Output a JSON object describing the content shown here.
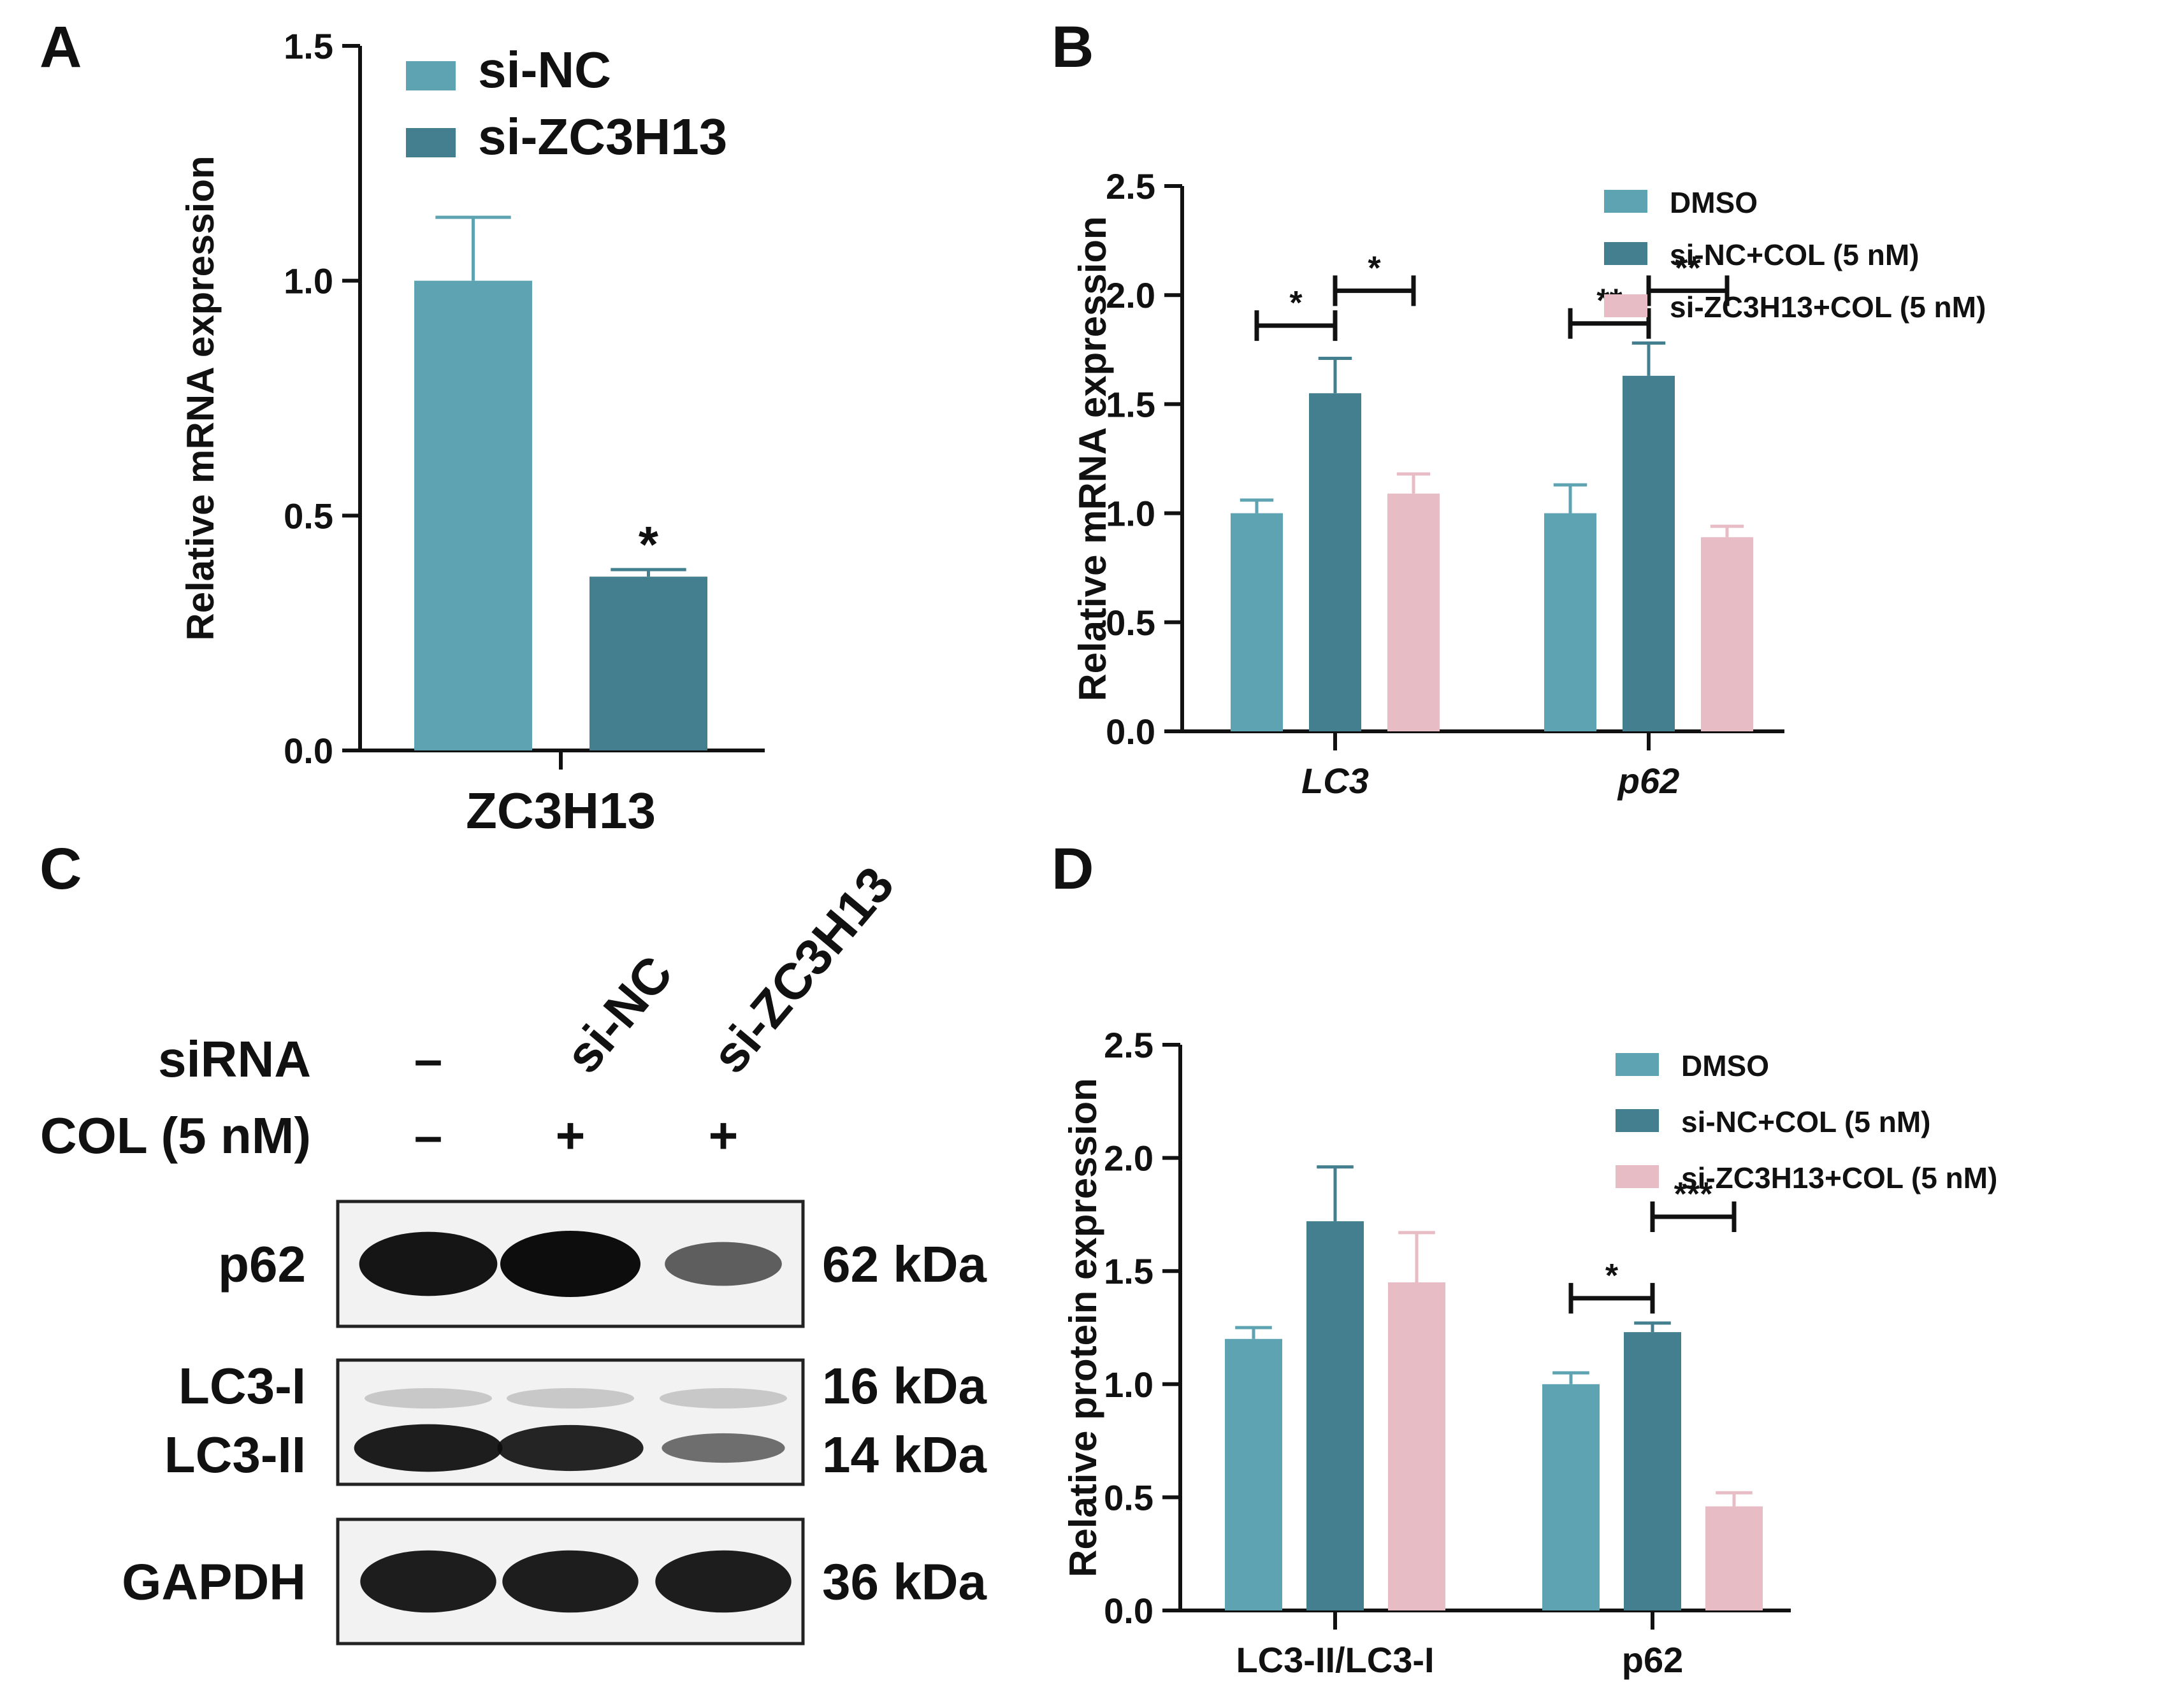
{
  "panels": {
    "A": "A",
    "B": "B",
    "C": "C",
    "D": "D"
  },
  "colors": {
    "dmso": "#5DA3B1",
    "sinc": "#437F8E",
    "sizc": "#E7BCC4",
    "axis": "#111111"
  },
  "chart_data": [
    {
      "id": "A",
      "type": "bar",
      "title": "",
      "ylabel": "Relative mRNA expression",
      "xlabel": "",
      "ylim": [
        0,
        1.5
      ],
      "yticks": [
        0.0,
        0.5,
        1.0,
        1.5
      ],
      "ytick_labels": [
        "0.0",
        "0.5",
        "1.0",
        "1.5"
      ],
      "categories": [
        "ZC3H13"
      ],
      "series": [
        {
          "name": "si-NC",
          "color": "#5DA3B1",
          "values": [
            1.0
          ],
          "errors": [
            0.135
          ]
        },
        {
          "name": "si-ZC3H13",
          "color": "#437F8E",
          "values": [
            0.37
          ],
          "errors": [
            0.015
          ]
        }
      ],
      "annotations": [
        {
          "text": "*",
          "category": 0,
          "series": 1
        }
      ],
      "legend": "top-right"
    },
    {
      "id": "B",
      "type": "bar",
      "ylabel": "Relative mRNA expression",
      "ylim": [
        0,
        2.5
      ],
      "yticks": [
        0.0,
        0.5,
        1.0,
        1.5,
        2.0,
        2.5
      ],
      "ytick_labels": [
        "0.0",
        "0.5",
        "1.0",
        "1.5",
        "2.0",
        "2.5"
      ],
      "categories": [
        "LC3",
        "p62"
      ],
      "italic_categories": true,
      "series": [
        {
          "name": "DMSO",
          "color": "#5DA3B1",
          "values": [
            1.0,
            1.0
          ],
          "errors": [
            0.06,
            0.13
          ]
        },
        {
          "name": "si-NC+COL (5 nM)",
          "color": "#437F8E",
          "values": [
            1.55,
            1.63
          ],
          "errors": [
            0.16,
            0.15
          ]
        },
        {
          "name": "si-ZC3H13+COL (5 nM)",
          "color": "#E7BCC4",
          "values": [
            1.09,
            0.89
          ],
          "errors": [
            0.09,
            0.05
          ]
        }
      ],
      "significance": [
        {
          "category": 0,
          "from": 0,
          "to": 1,
          "label": "*",
          "level": 1.86
        },
        {
          "category": 0,
          "from": 1,
          "to": 2,
          "label": "*",
          "level": 2.02
        },
        {
          "category": 1,
          "from": 0,
          "to": 1,
          "label": "**",
          "level": 1.87
        },
        {
          "category": 1,
          "from": 1,
          "to": 2,
          "label": "**",
          "level": 2.02
        }
      ],
      "legend": "top-right"
    },
    {
      "id": "D",
      "type": "bar",
      "ylabel": "Relative protein expression",
      "ylim": [
        0,
        2.5
      ],
      "yticks": [
        0.0,
        0.5,
        1.0,
        1.5,
        2.0,
        2.5
      ],
      "ytick_labels": [
        "0.0",
        "0.5",
        "1.0",
        "1.5",
        "2.0",
        "2.5"
      ],
      "categories": [
        "LC3-II/LC3-I",
        "p62"
      ],
      "italic_categories": false,
      "series": [
        {
          "name": "DMSO",
          "color": "#5DA3B1",
          "values": [
            1.2,
            1.0
          ],
          "errors": [
            0.05,
            0.05
          ]
        },
        {
          "name": "si-NC+COL (5 nM)",
          "color": "#437F8E",
          "values": [
            1.72,
            1.23
          ],
          "errors": [
            0.24,
            0.04
          ]
        },
        {
          "name": "si-ZC3H13+COL (5 nM)",
          "color": "#E7BCC4",
          "values": [
            1.45,
            0.46
          ],
          "errors": [
            0.22,
            0.06
          ]
        }
      ],
      "significance": [
        {
          "category": 1,
          "from": 0,
          "to": 1,
          "label": "*",
          "level": 1.38
        },
        {
          "category": 1,
          "from": 1,
          "to": 2,
          "label": "***",
          "level": 1.74
        }
      ],
      "legend": "top-right"
    }
  ],
  "western": {
    "lane_header": [
      "si-NC",
      "si-ZC3H13"
    ],
    "siRNA_label": "siRNA",
    "siRNA_marks": [
      "–",
      "",
      ""
    ],
    "col_label": "COL (5 nM)",
    "col_marks": [
      "–",
      "+",
      "+"
    ],
    "rows": [
      {
        "labels": [
          "p62"
        ],
        "kda": [
          "62 kDa"
        ],
        "intensity": [
          0.95,
          1.0,
          0.45
        ]
      },
      {
        "labels": [
          "LC3-I",
          "LC3-II"
        ],
        "kda": [
          "16 kDa",
          "14 kDa"
        ],
        "intensity": [
          0.9,
          0.85,
          0.35
        ]
      },
      {
        "labels": [
          "GAPDH"
        ],
        "kda": [
          "36 kDa"
        ],
        "intensity": [
          0.9,
          0.9,
          0.9
        ]
      }
    ]
  }
}
